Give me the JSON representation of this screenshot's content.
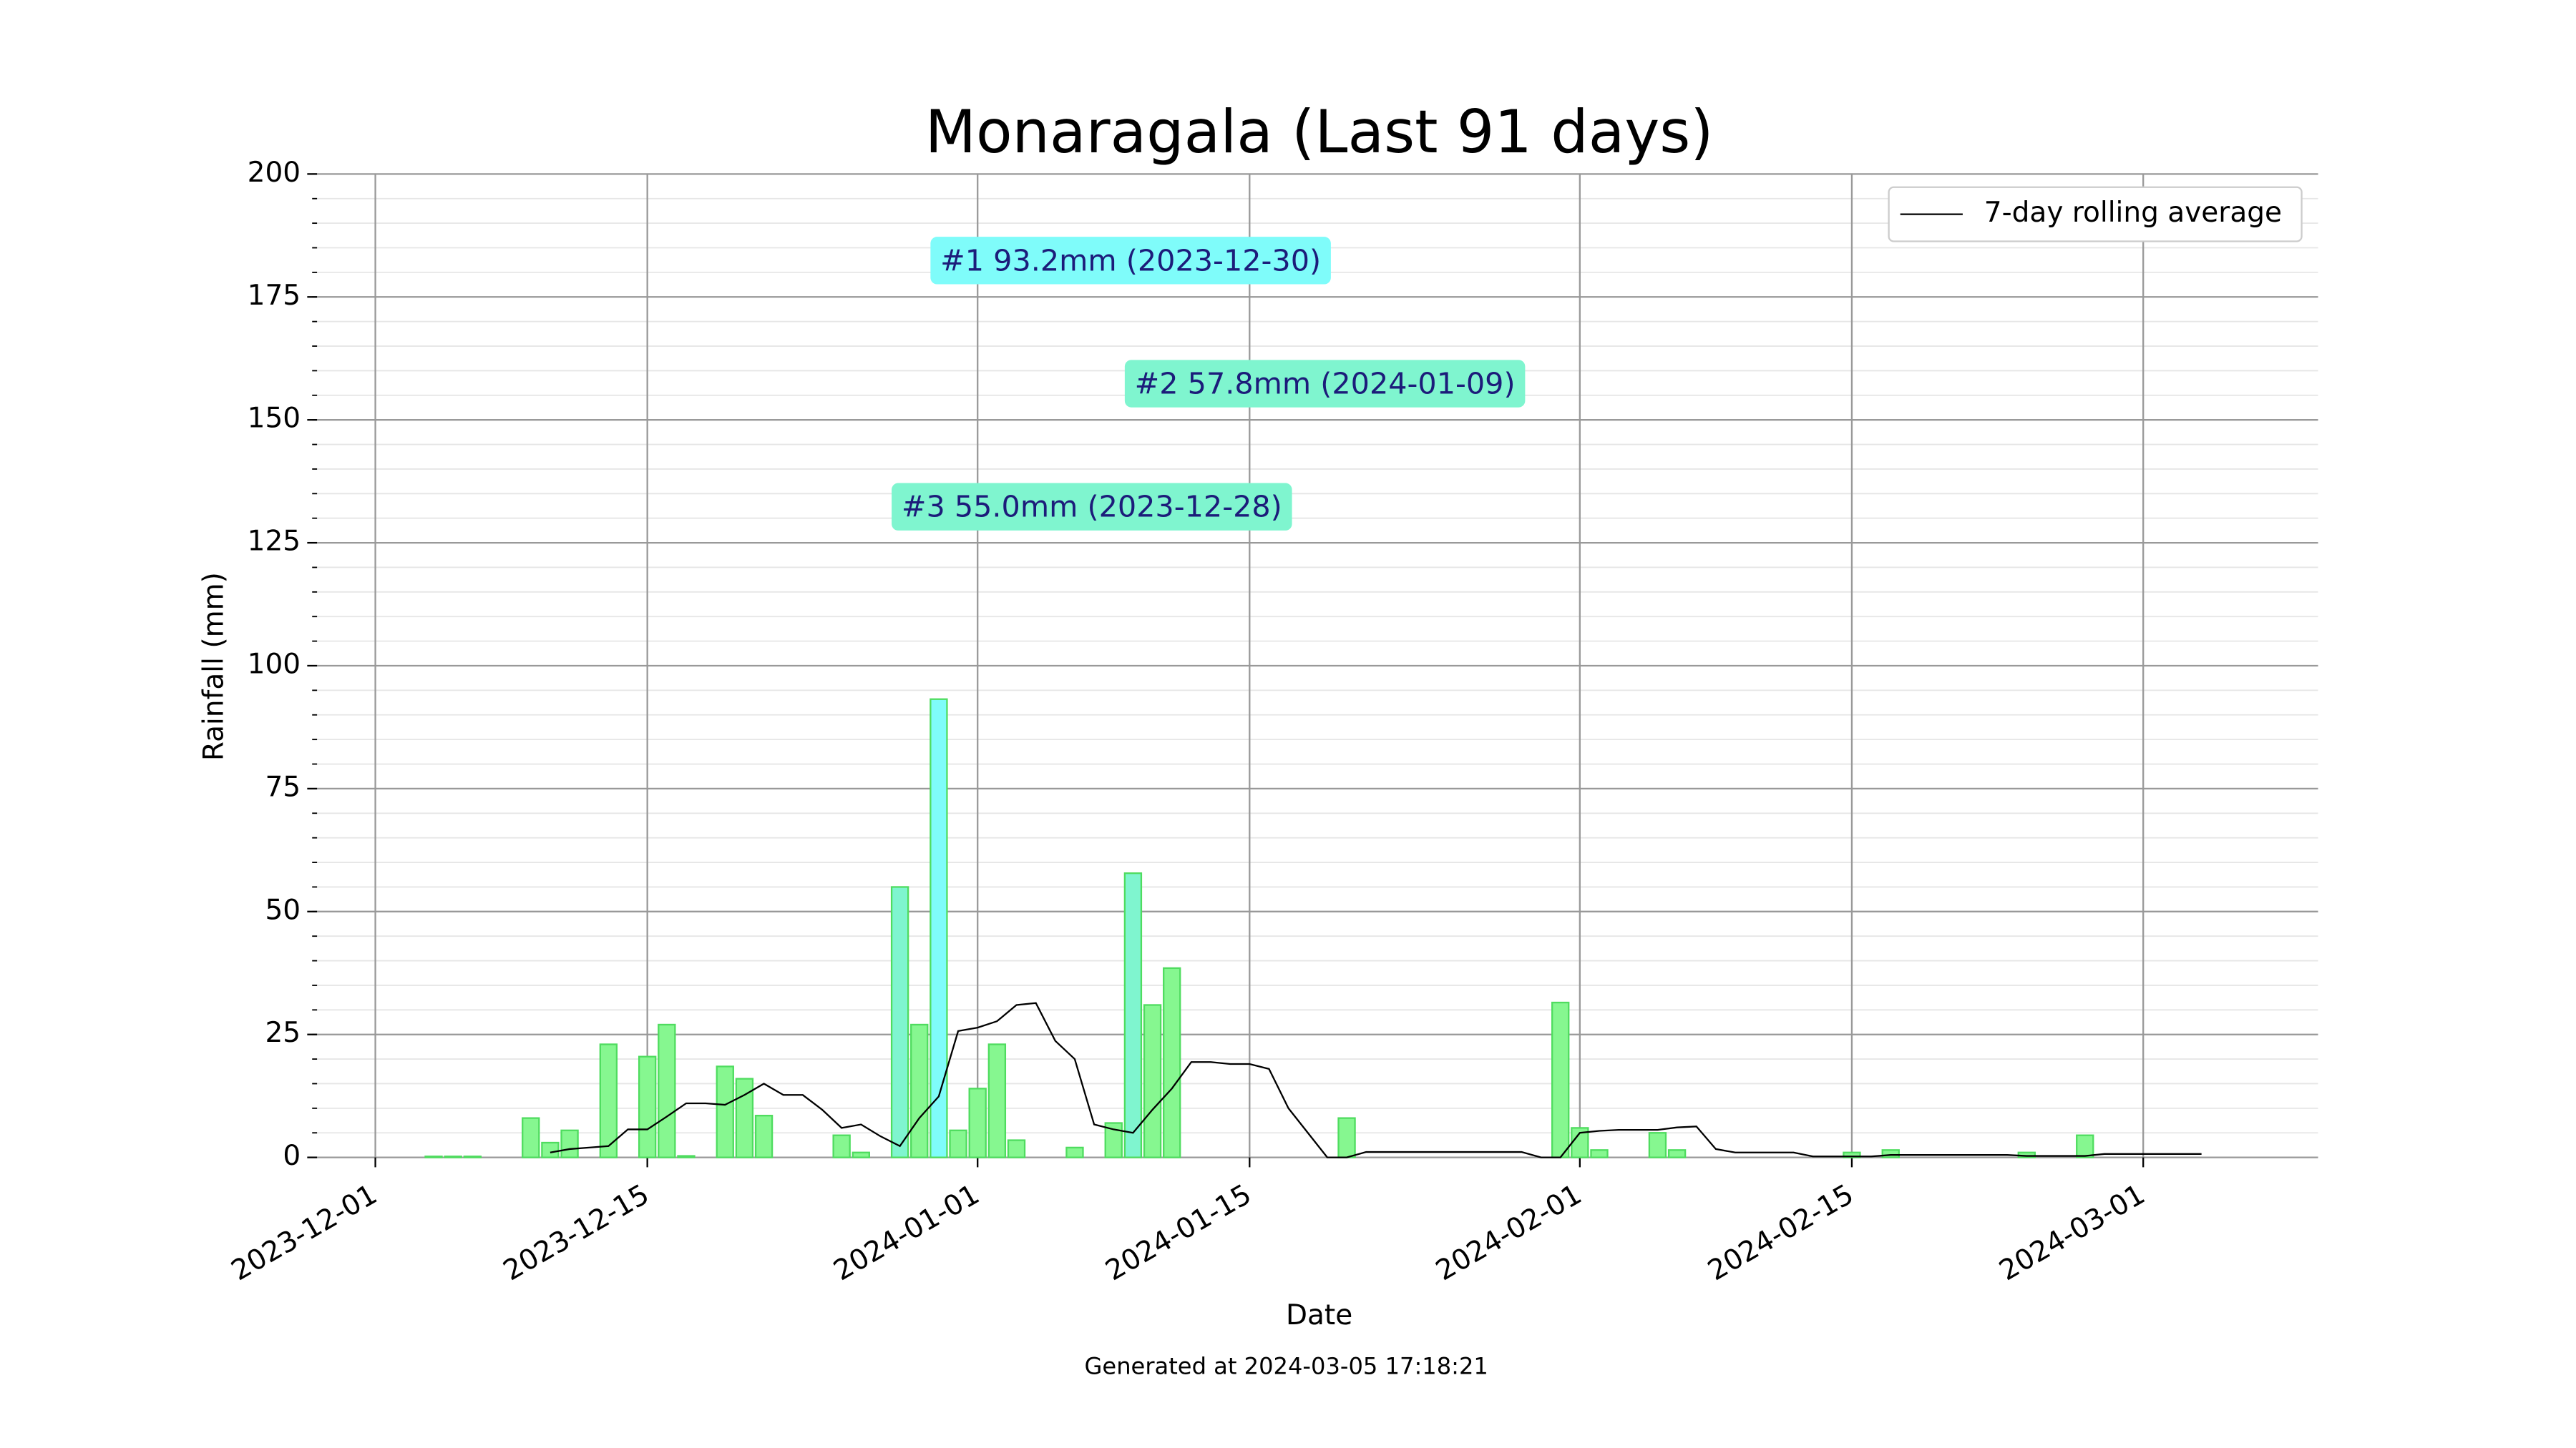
{
  "chart_data": {
    "type": "bar",
    "title": "Monaragala (Last 91 days)",
    "x_label": "Date",
    "y_label": "Rainfall (mm)",
    "footer": "Generated at 2024-03-05 17:18:21",
    "x": [
      "2023-12-04",
      "2023-12-05",
      "2023-12-06",
      "2023-12-07",
      "2023-12-08",
      "2023-12-09",
      "2023-12-10",
      "2023-12-11",
      "2023-12-12",
      "2023-12-13",
      "2023-12-14",
      "2023-12-15",
      "2023-12-16",
      "2023-12-17",
      "2023-12-18",
      "2023-12-19",
      "2023-12-20",
      "2023-12-21",
      "2023-12-22",
      "2023-12-23",
      "2023-12-24",
      "2023-12-25",
      "2023-12-26",
      "2023-12-27",
      "2023-12-28",
      "2023-12-29",
      "2023-12-30",
      "2023-12-31",
      "2024-01-01",
      "2024-01-02",
      "2024-01-03",
      "2024-01-04",
      "2024-01-05",
      "2024-01-06",
      "2024-01-07",
      "2024-01-08",
      "2024-01-09",
      "2024-01-10",
      "2024-01-11",
      "2024-01-12",
      "2024-01-13",
      "2024-01-14",
      "2024-01-15",
      "2024-01-16",
      "2024-01-17",
      "2024-01-18",
      "2024-01-19",
      "2024-01-20",
      "2024-01-21",
      "2024-01-22",
      "2024-01-23",
      "2024-01-24",
      "2024-01-25",
      "2024-01-26",
      "2024-01-27",
      "2024-01-28",
      "2024-01-29",
      "2024-01-30",
      "2024-01-31",
      "2024-02-01",
      "2024-02-02",
      "2024-02-03",
      "2024-02-04",
      "2024-02-05",
      "2024-02-06",
      "2024-02-07",
      "2024-02-08",
      "2024-02-09",
      "2024-02-10",
      "2024-02-11",
      "2024-02-12",
      "2024-02-13",
      "2024-02-14",
      "2024-02-15",
      "2024-02-16",
      "2024-02-17",
      "2024-02-18",
      "2024-02-19",
      "2024-02-20",
      "2024-02-21",
      "2024-02-22",
      "2024-02-23",
      "2024-02-24",
      "2024-02-25",
      "2024-02-26",
      "2024-02-27",
      "2024-02-28",
      "2024-02-29",
      "2024-03-01",
      "2024-03-02",
      "2024-03-03",
      "2024-03-04"
    ],
    "values": [
      0.2,
      0.2,
      0.2,
      0,
      0,
      8,
      3,
      5.5,
      0,
      23,
      0,
      20.5,
      27,
      0.3,
      0,
      18.5,
      16,
      8.5,
      0,
      0,
      0,
      4.5,
      1,
      0,
      55,
      27,
      93.2,
      5.5,
      14,
      23,
      3.5,
      0,
      0,
      2,
      0,
      7,
      57.8,
      31,
      38.5,
      0,
      0,
      0,
      0,
      0,
      0,
      0,
      0,
      8,
      0,
      0,
      0,
      0,
      0,
      0,
      0,
      0,
      0,
      0,
      31.5,
      6,
      1.5,
      0,
      0,
      5,
      1.5,
      0,
      0,
      0,
      0,
      0,
      0,
      0,
      0,
      1,
      0,
      1.5,
      0,
      0,
      0,
      0,
      0,
      0,
      1,
      0,
      0,
      4.5,
      0,
      0,
      0,
      0,
      0,
      0
    ],
    "color": "#86f790",
    "edgecolor": "#4fdc5f",
    "line": {
      "type": "line",
      "name": "7-day rolling average",
      "color": "#000000",
      "values": [
        null,
        null,
        null,
        null,
        null,
        null,
        1,
        1.7,
        2,
        2.3,
        5.7,
        5.7,
        8.3,
        11,
        11,
        10.7,
        12.7,
        15,
        12.7,
        12.7,
        9.7,
        6,
        6.7,
        4.3,
        2.3,
        8,
        12.4,
        25.7,
        26.4,
        27.7,
        31,
        31.4,
        23.7,
        20,
        6.7,
        5.7,
        5,
        9.7,
        14,
        19.4,
        19.4,
        19,
        19,
        18,
        10,
        5,
        0,
        0,
        1.1,
        1.1,
        1.1,
        1.1,
        1.1,
        1.1,
        1.1,
        1.1,
        1.1,
        0,
        0,
        5,
        5.4,
        5.6,
        5.6,
        5.6,
        6.1,
        6.3,
        1.7,
        1,
        1,
        1,
        1,
        0.2,
        0.2,
        0.2,
        0.2,
        0.5,
        0.5,
        0.5,
        0.5,
        0.5,
        0.5,
        0.5,
        0.3,
        0.3,
        0.3,
        0.3,
        0.7,
        0.7,
        0.7,
        0.7,
        0.7,
        0.7
      ]
    },
    "annotations": [
      {
        "text": "#1 93.2mm (2023-12-30)",
        "x": "2023-12-30",
        "color": "#7ffcfa"
      },
      {
        "text": "#2 57.8mm (2024-01-09)",
        "x": "2024-01-09",
        "color": "#7ff5cf"
      },
      {
        "text": "#3 55.0mm (2023-12-28)",
        "x": "2023-12-28",
        "color": "#7ff5cf"
      }
    ],
    "xlim": [
      "2023-11-28",
      "2024-03-10"
    ],
    "xticks": [
      "2023-12-01",
      "2023-12-15",
      "2024-01-01",
      "2024-01-15",
      "2024-02-01",
      "2024-02-15",
      "2024-03-01"
    ],
    "ylim": [
      0,
      200
    ],
    "yticks": [
      0,
      25,
      50,
      75,
      100,
      125,
      150,
      175,
      200
    ],
    "minor_ytick_step": 5,
    "grid": true,
    "legend_corner": "upper right"
  }
}
